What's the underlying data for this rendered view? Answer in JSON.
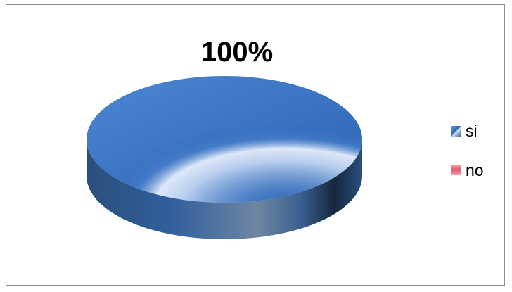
{
  "chart_data": {
    "type": "pie",
    "style": "3d",
    "categories": [
      "si",
      "no"
    ],
    "values": [
      100,
      0
    ],
    "data_labels": [
      "100%"
    ],
    "legend": {
      "position": "right",
      "entries": [
        {
          "name": "si",
          "color": "#2f66b3"
        },
        {
          "name": "no",
          "color": "#e05b6a"
        }
      ]
    },
    "title": ""
  }
}
